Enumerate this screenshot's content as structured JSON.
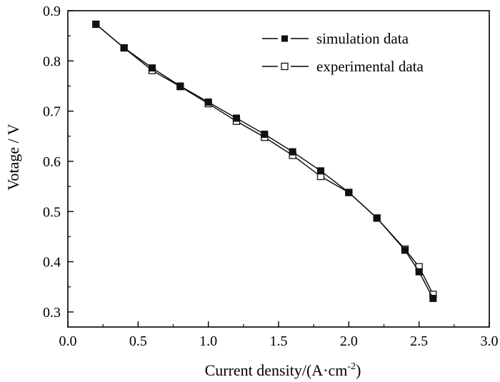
{
  "chart_data": {
    "type": "line",
    "title": "",
    "xlabel": "Current density/(A·cm",
    "xlabel_sup": "-2",
    "xlabel_end": ")",
    "ylabel": "Votage / V",
    "xlim": [
      0.0,
      3.0
    ],
    "ylim": [
      0.27,
      0.9
    ],
    "xticks": [
      "0.0",
      "0.5",
      "1.0",
      "1.5",
      "2.0",
      "2.5",
      "3.0"
    ],
    "yticks": [
      "0.3",
      "0.4",
      "0.5",
      "0.6",
      "0.7",
      "0.8",
      "0.9"
    ],
    "grid": false,
    "legend_position": "top-right",
    "series": [
      {
        "name": "simulation data",
        "marker": "filled-square",
        "color": "#111111",
        "x": [
          0.2,
          0.4,
          0.6,
          0.8,
          1.0,
          1.2,
          1.4,
          1.6,
          1.8,
          2.0,
          2.2,
          2.4,
          2.5,
          2.6
        ],
        "y": [
          0.873,
          0.826,
          0.786,
          0.75,
          0.718,
          0.686,
          0.654,
          0.619,
          0.581,
          0.538,
          0.487,
          0.423,
          0.38,
          0.327
        ]
      },
      {
        "name": "experimental data",
        "marker": "open-square",
        "color": "#111111",
        "x": [
          0.2,
          0.4,
          0.6,
          0.8,
          1.0,
          1.2,
          1.4,
          1.6,
          1.8,
          2.0,
          2.2,
          2.4,
          2.5,
          2.6
        ],
        "y": [
          0.873,
          0.826,
          0.781,
          0.749,
          0.715,
          0.68,
          0.648,
          0.612,
          0.57,
          0.538,
          0.487,
          0.425,
          0.39,
          0.335
        ]
      }
    ]
  }
}
